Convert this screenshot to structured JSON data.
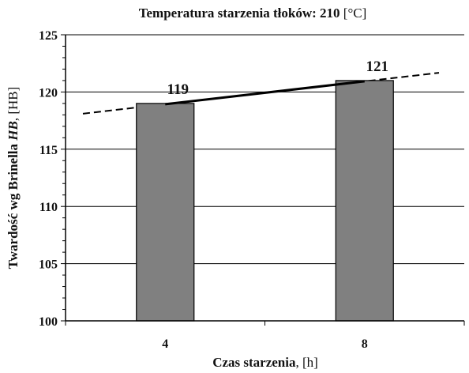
{
  "chart_data": {
    "type": "bar",
    "title_bold": "Temperatura starzenia tłoków: 210",
    "title_unit": " [°C]",
    "ylabel_bold": "Twardość wg Brinella ",
    "ylabel_italic": "HB",
    "ylabel_unit": ", [HB]",
    "xlabel_bold": "Czas starzenia",
    "xlabel_unit": ", [h]",
    "categories": [
      "4",
      "8"
    ],
    "values": [
      119,
      121
    ],
    "data_labels": [
      "119",
      "121"
    ],
    "ylim": [
      100,
      125
    ],
    "yticks": [
      100,
      105,
      110,
      115,
      120,
      125
    ],
    "ytick_labels": [
      "100",
      "105",
      "110",
      "115",
      "120",
      "125"
    ],
    "minor_ytick_step": 1,
    "grid": true,
    "bar_color": "#808080",
    "trendline": {
      "type": "linear",
      "style": "dashed",
      "color": "#000000"
    },
    "segment": {
      "from_category": "4",
      "to_category": "8",
      "style": "solid",
      "color": "#000000"
    }
  }
}
